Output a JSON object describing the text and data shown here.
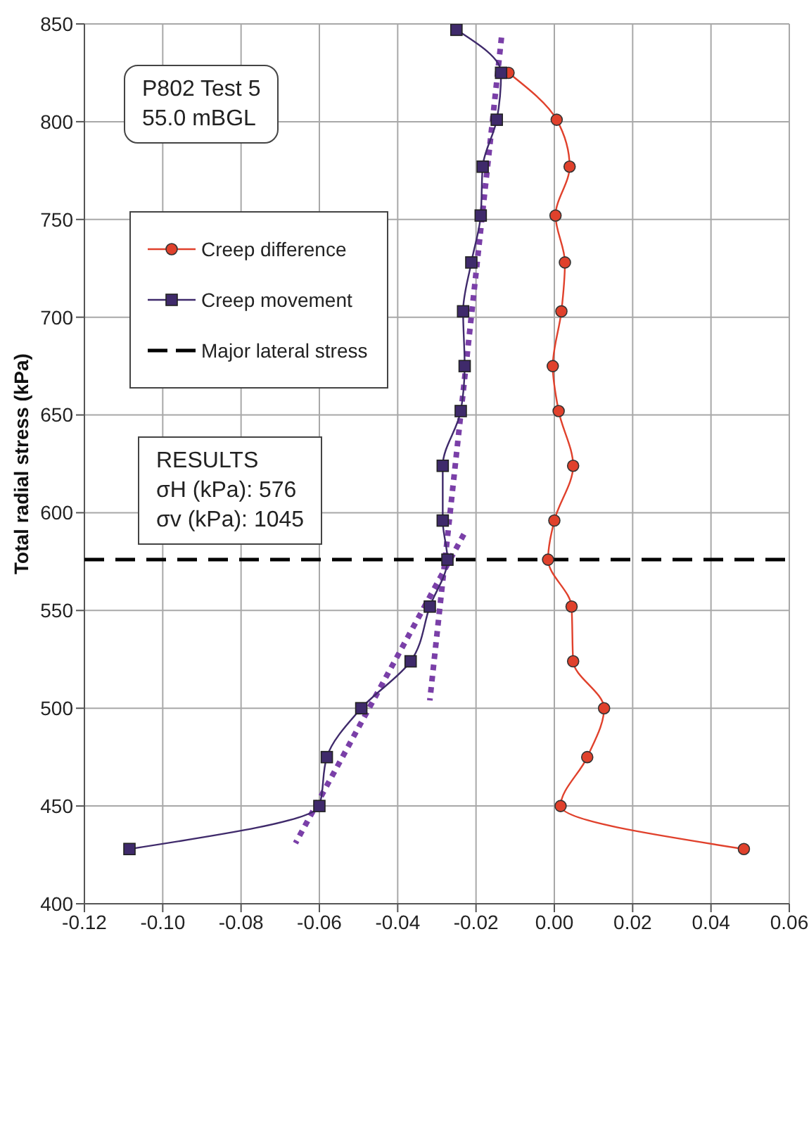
{
  "chart_data": {
    "type": "line",
    "ylabel": "Total radial stress (kPa)",
    "xlim": [
      -0.12,
      0.06
    ],
    "xticks": [
      {
        "value": -0.12,
        "label": "-0.12"
      },
      {
        "value": -0.1,
        "label": "-0.10"
      },
      {
        "value": -0.08,
        "label": "-0.08"
      },
      {
        "value": -0.06,
        "label": "-0.06"
      },
      {
        "value": -0.04,
        "label": "-0.04"
      },
      {
        "value": -0.02,
        "label": "-0.02"
      },
      {
        "value": 0,
        "label": "0.00"
      },
      {
        "value": 0.02,
        "label": "0.02"
      },
      {
        "value": 0.04,
        "label": "0.04"
      },
      {
        "value": 0.06,
        "label": "0.06"
      }
    ],
    "ylim": [
      400,
      850
    ],
    "yticks": [
      400,
      450,
      500,
      550,
      600,
      650,
      700,
      750,
      800,
      850
    ],
    "grid": true,
    "legend": "top left",
    "annotations": [
      "P802 Test 5\n55.0 mBGL",
      "RESULTS\nσH (kPa): 576\nσv (kPa): 1045"
    ],
    "series": [
      {
        "name": "Creep difference",
        "color": "#e0412c",
        "marker": "circle",
        "line_style": "solid",
        "x": [
          -0.0117,
          0.0006,
          0.0039,
          0.0003,
          0.0027,
          0.0018,
          -0.0004,
          0.0011,
          0.0048,
          0,
          -0.0016,
          0.0044,
          0.0048,
          0.0127,
          0.0084,
          0.0016,
          0.0484
        ],
        "values": [
          825,
          801,
          777,
          752,
          728,
          703,
          675,
          652,
          624,
          596,
          576,
          552,
          524,
          500,
          475,
          450,
          428
        ]
      },
      {
        "name": "Creep movement",
        "color": "#3f2a6b",
        "marker": "square",
        "line_style": "solid",
        "x": [
          -0.025,
          -0.0136,
          -0.0147,
          -0.0183,
          -0.0188,
          -0.0212,
          -0.0233,
          -0.0229,
          -0.0239,
          -0.0285,
          -0.0285,
          -0.0273,
          -0.0318,
          -0.0367,
          -0.0493,
          -0.0581,
          -0.06,
          -0.1085
        ],
        "values": [
          847,
          825,
          801,
          777,
          752,
          728,
          703,
          675,
          652,
          624,
          596,
          576,
          552,
          524,
          500,
          475,
          450,
          428
        ]
      },
      {
        "name": "Major lateral stress",
        "color": "#000000",
        "marker": "none",
        "line_style": "dashed",
        "x": [
          -0.12,
          0.06
        ],
        "values": [
          576,
          576
        ]
      },
      {
        "color": "#7a3fa8",
        "marker": "none",
        "line_style": "dotted",
        "x": [
          -0.0135,
          -0.0318
        ],
        "values": [
          843,
          504
        ]
      },
      {
        "color": "#7a3fa8",
        "marker": "none",
        "line_style": "dotted",
        "x": [
          -0.0231,
          -0.0661
        ],
        "values": [
          589,
          431
        ]
      }
    ]
  }
}
